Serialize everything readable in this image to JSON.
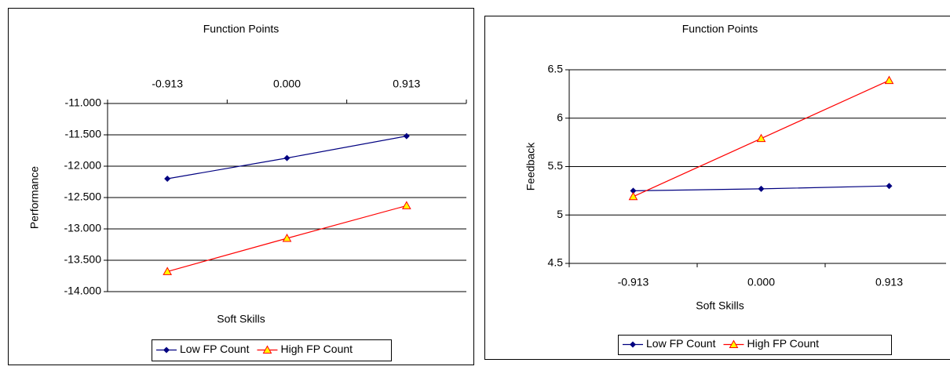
{
  "chart_data": [
    {
      "type": "line",
      "title": "Function Points",
      "x_label": "Soft Skills",
      "y_label": "Performance",
      "categories": [
        "-0.913",
        "0.000",
        "0.913"
      ],
      "category_axis": "top",
      "ylim": [
        -14,
        -11
      ],
      "yticks": [
        {
          "value": -11,
          "label": "-11.000"
        },
        {
          "value": -11.5,
          "label": "-11.500"
        },
        {
          "value": -12,
          "label": "-12.000"
        },
        {
          "value": -12.5,
          "label": "-12.500"
        },
        {
          "value": -13,
          "label": "-13.000"
        },
        {
          "value": -13.5,
          "label": "-13.500"
        },
        {
          "value": -14,
          "label": "-14.000"
        }
      ],
      "grid": true,
      "legend": "bottom",
      "series": [
        {
          "name": "Low FP Count",
          "color": "#000080",
          "marker": "diamond",
          "values": [
            -12.2,
            -11.87,
            -11.52
          ]
        },
        {
          "name": "High FP Count",
          "color": "#ff0000",
          "marker": "triangle",
          "values": [
            -13.68,
            -13.15,
            -12.63
          ]
        }
      ]
    },
    {
      "type": "line",
      "title": "Function Points",
      "x_label": "Soft Skills",
      "y_label": "Feedback",
      "categories": [
        "-0.913",
        "0.000",
        "0.913"
      ],
      "category_axis": "bottom",
      "ylim": [
        4.5,
        6.5
      ],
      "yticks": [
        4.5,
        5,
        5.5,
        6,
        6.5
      ],
      "grid": true,
      "legend": "bottom",
      "series": [
        {
          "name": "Low FP Count",
          "color": "#000080",
          "marker": "diamond",
          "values": [
            5.25,
            5.27,
            5.3
          ]
        },
        {
          "name": "High FP Count",
          "color": "#ff0000",
          "marker": "triangle",
          "values": [
            5.19,
            5.79,
            6.39
          ]
        }
      ]
    }
  ]
}
